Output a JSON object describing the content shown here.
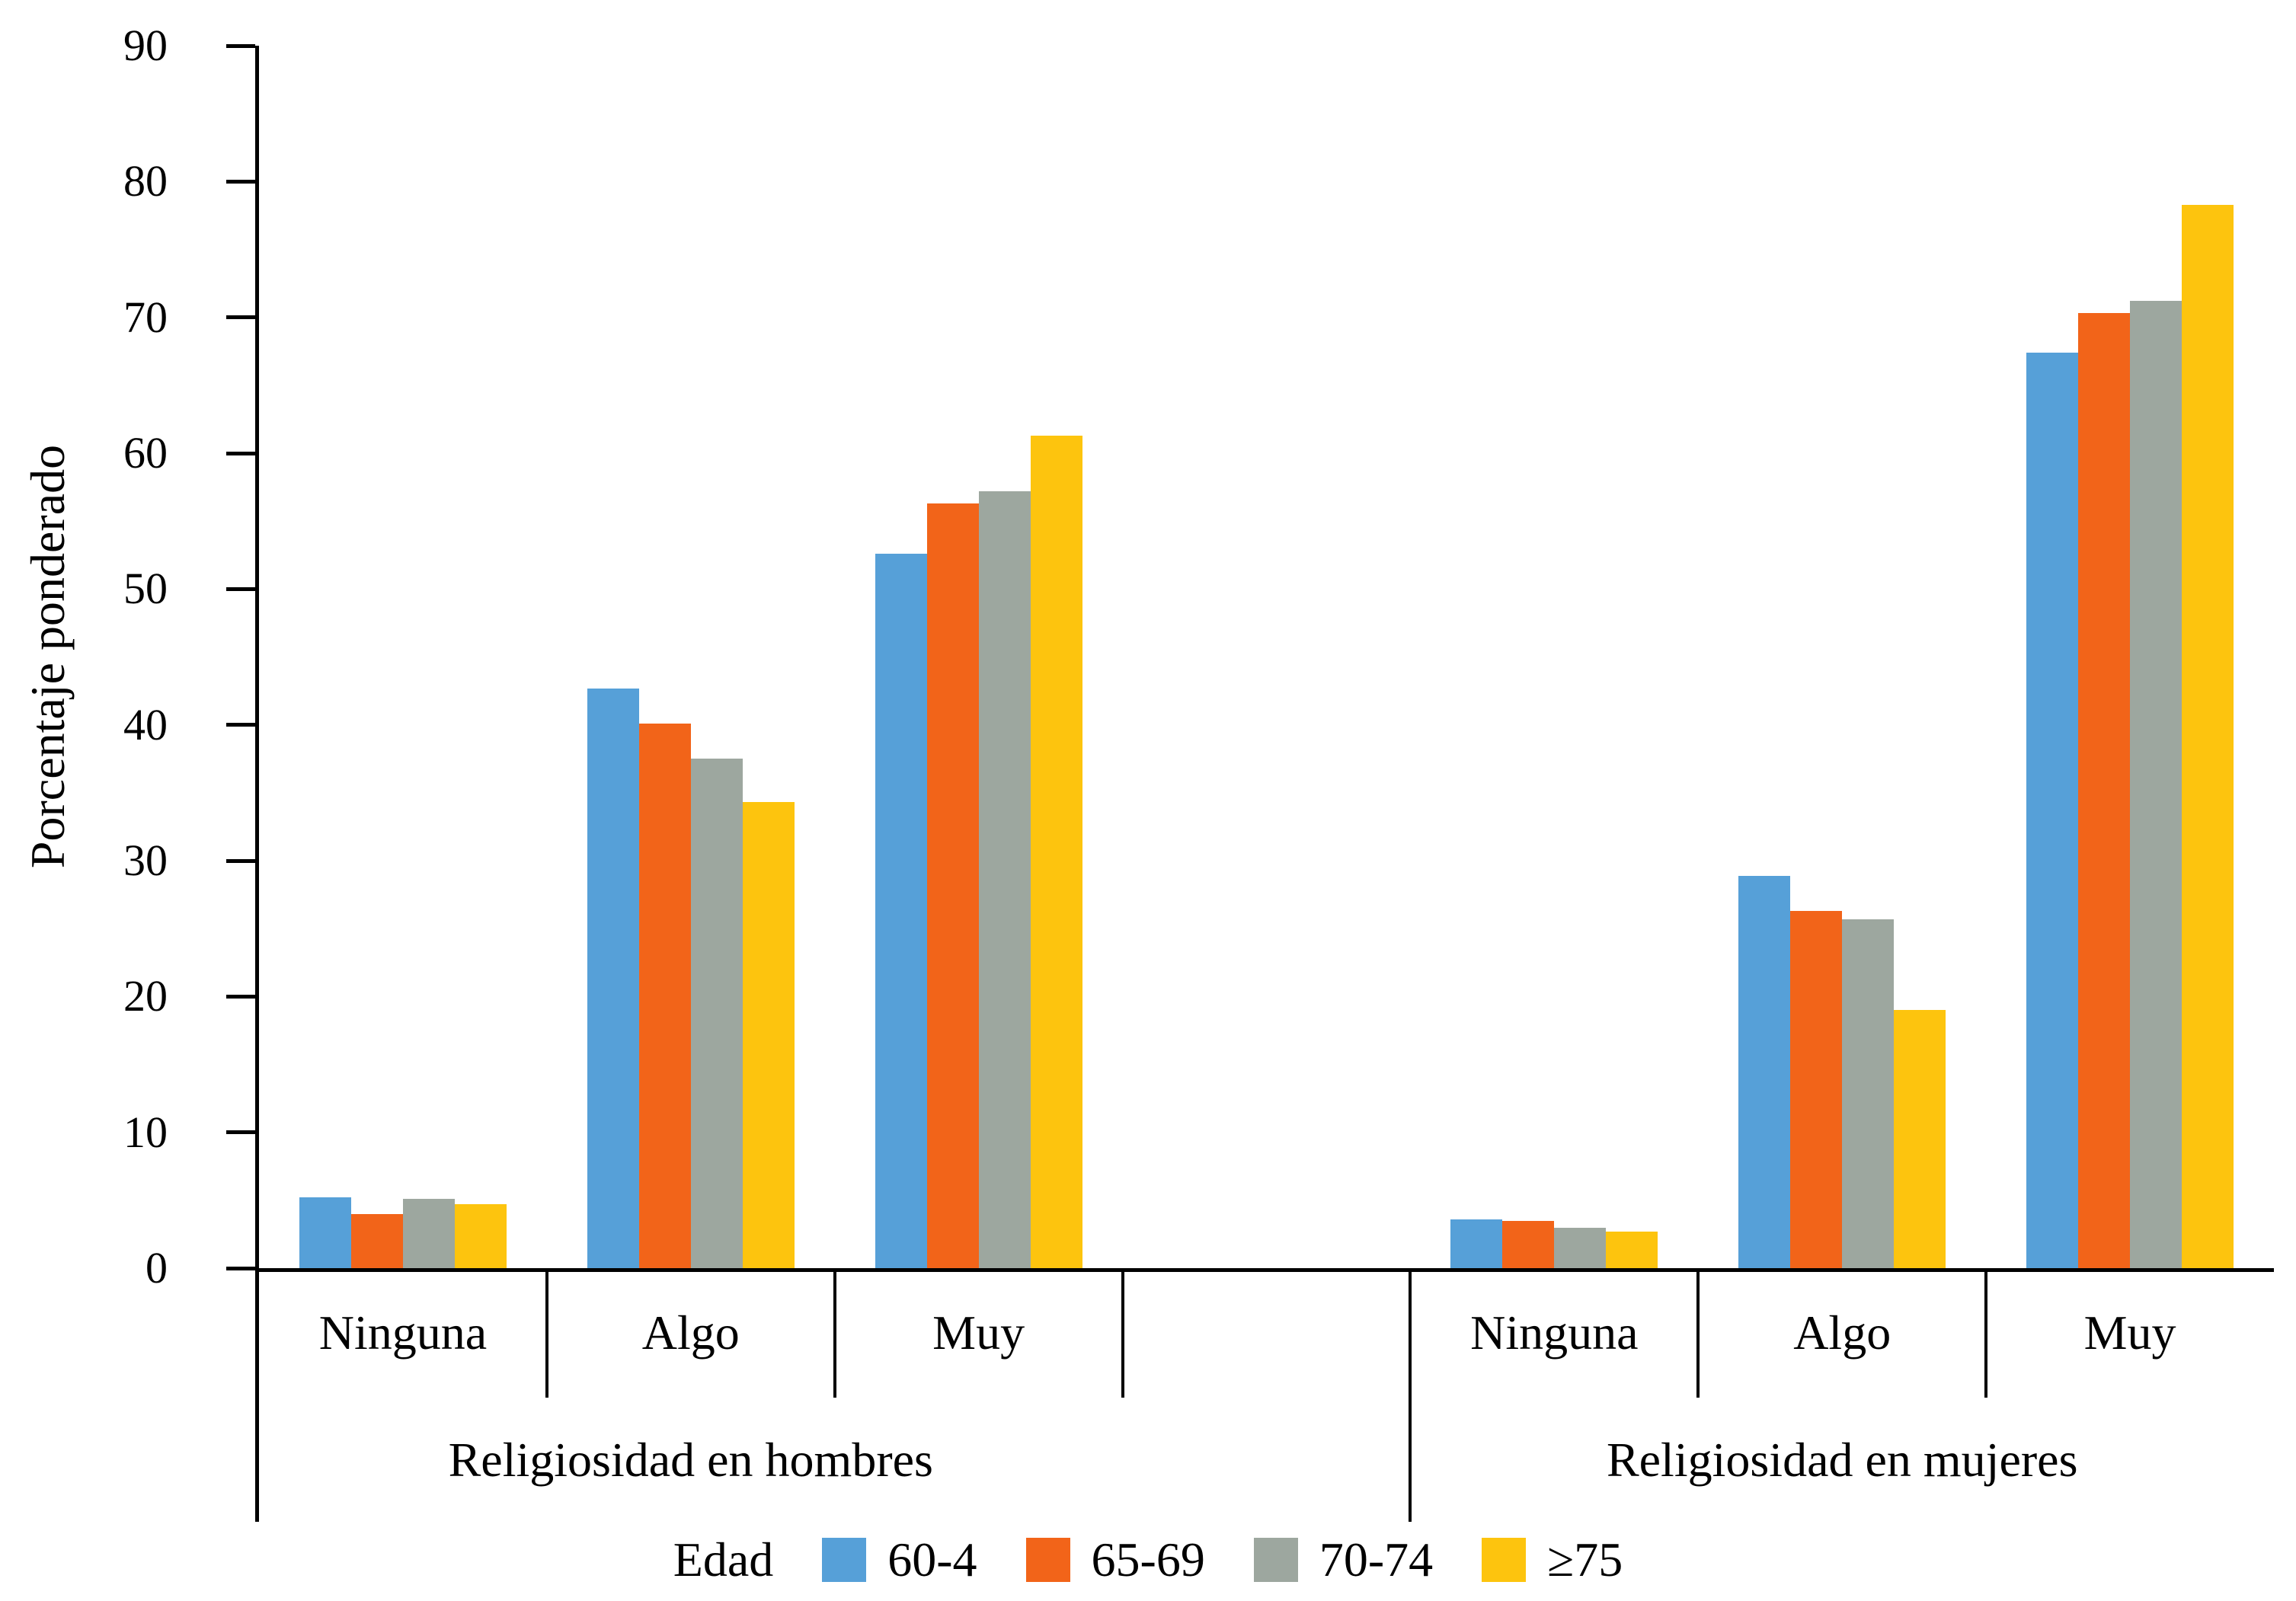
{
  "chart_data": {
    "type": "bar",
    "ylabel": "Porcentaje ponderado",
    "ylim": [
      0,
      90
    ],
    "ytick_step": 10,
    "grid": false,
    "legend_position": "bottom",
    "legend_title": "Edad",
    "sections": [
      {
        "label": "Religiosidad en hombres",
        "categories": [
          "Ninguna",
          "Algo",
          "Muy"
        ]
      },
      {
        "label": "Religiosidad en mujeres",
        "categories": [
          "Ninguna",
          "Algo",
          "Muy"
        ]
      }
    ],
    "values_order": [
      "hombres-Ninguna",
      "hombres-Algo",
      "hombres-Muy",
      "mujeres-Ninguna",
      "mujeres-Algo",
      "mujeres-Muy"
    ],
    "series": [
      {
        "name": "60-4",
        "color": "#56A0D8",
        "values": [
          5.2,
          42.7,
          52.6,
          3.6,
          28.9,
          67.4
        ]
      },
      {
        "name": "65-69",
        "color": "#F26419",
        "values": [
          4.0,
          40.1,
          56.3,
          3.5,
          26.3,
          70.3
        ]
      },
      {
        "name": "70-74",
        "color": "#9DA79F",
        "values": [
          5.1,
          37.5,
          57.2,
          3.0,
          25.7,
          71.2
        ]
      },
      {
        "name": "≥75",
        "color": "#FDC40E",
        "values": [
          4.7,
          34.3,
          61.3,
          2.7,
          19.0,
          78.3
        ]
      }
    ]
  }
}
